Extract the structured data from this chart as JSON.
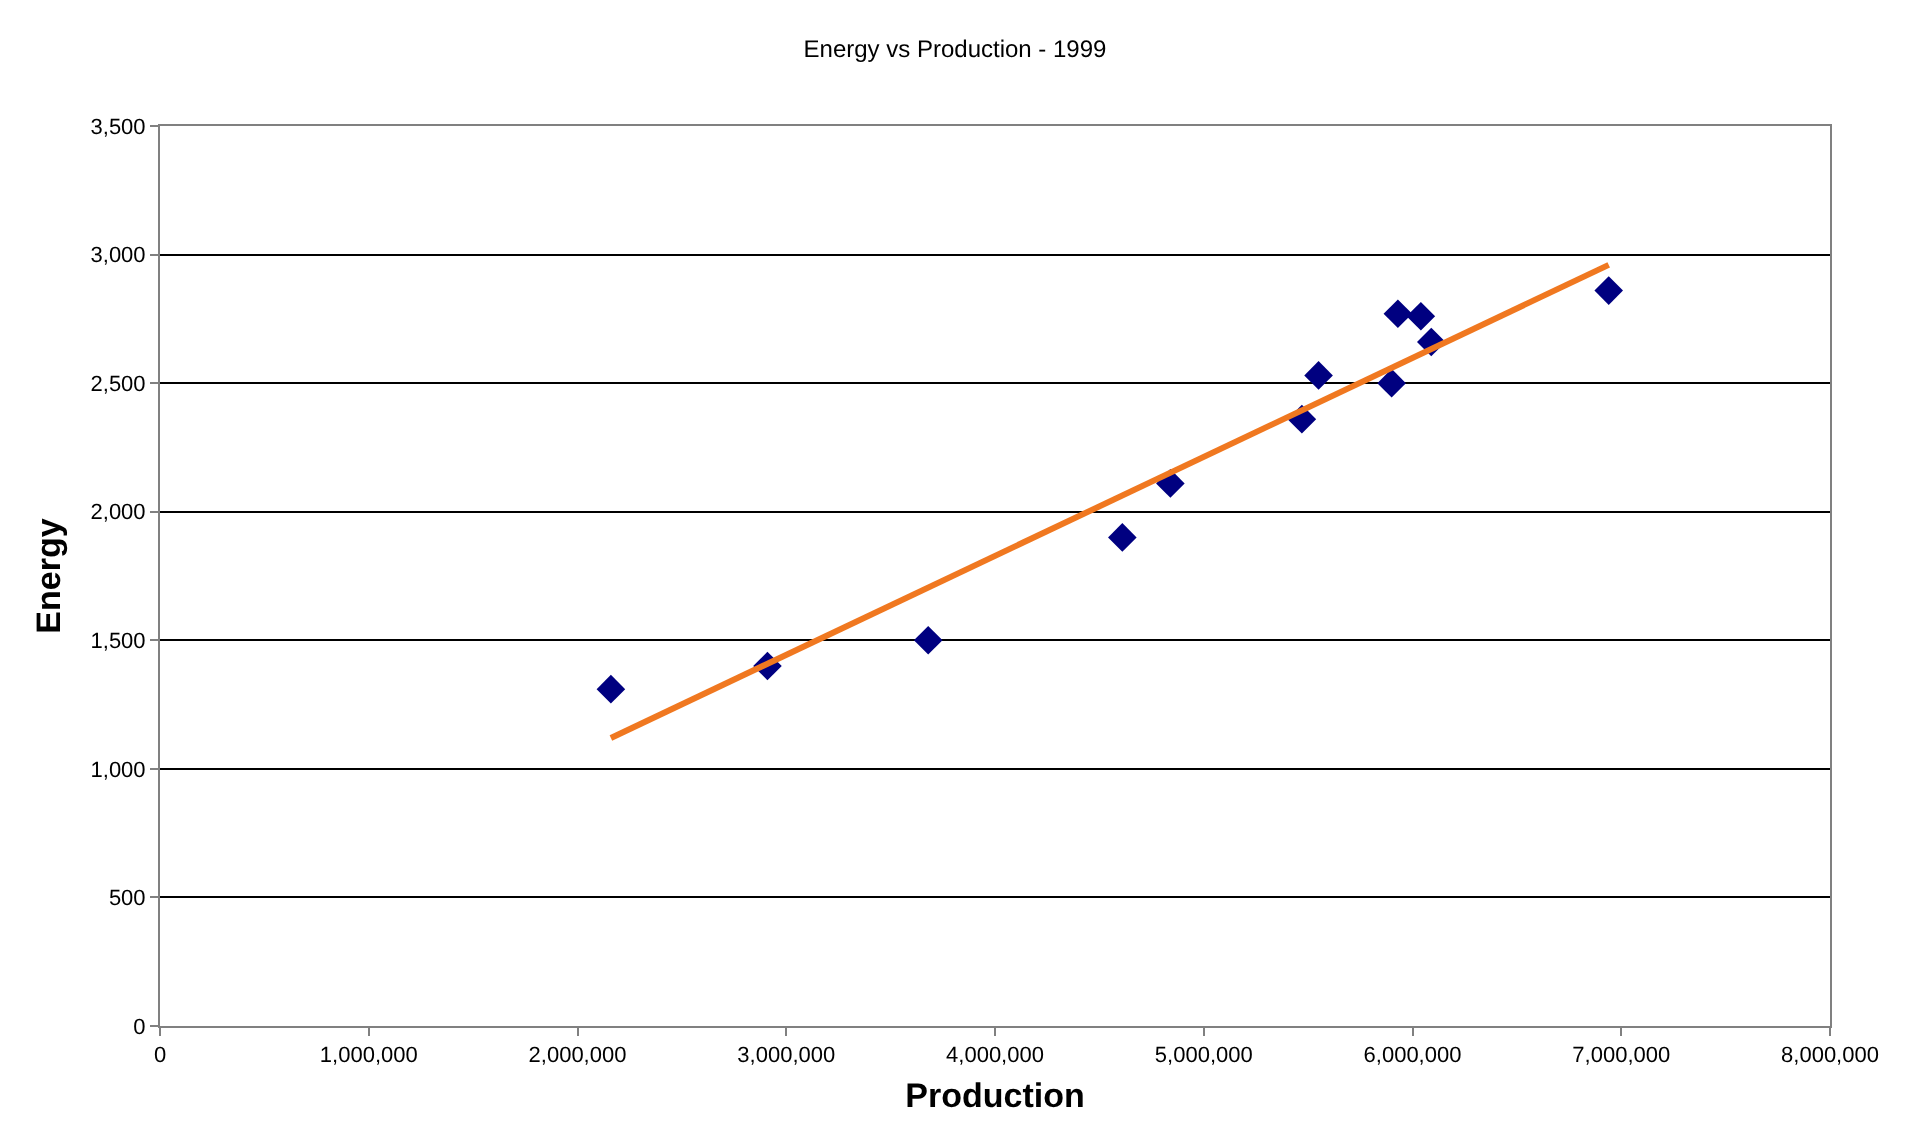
{
  "chart_data": {
    "type": "scatter",
    "title": "Energy vs Production - 1999",
    "xlabel": "Production",
    "ylabel": "Energy",
    "xlim": [
      0,
      8000000
    ],
    "xticks": [
      {
        "value": 0,
        "label": "0"
      },
      {
        "value": 1000000,
        "label": "1,000,000"
      },
      {
        "value": 2000000,
        "label": "2,000,000"
      },
      {
        "value": 3000000,
        "label": "3,000,000"
      },
      {
        "value": 4000000,
        "label": "4,000,000"
      },
      {
        "value": 5000000,
        "label": "5,000,000"
      },
      {
        "value": 6000000,
        "label": "6,000,000"
      },
      {
        "value": 7000000,
        "label": "7,000,000"
      },
      {
        "value": 8000000,
        "label": "8,000,000"
      }
    ],
    "ylim": [
      0,
      3500
    ],
    "yticks": [
      {
        "value": 0,
        "label": "0"
      },
      {
        "value": 500,
        "label": "500"
      },
      {
        "value": 1000,
        "label": "1,000"
      },
      {
        "value": 1500,
        "label": "1,500"
      },
      {
        "value": 2000,
        "label": "2,000"
      },
      {
        "value": 2500,
        "label": "2,500"
      },
      {
        "value": 3000,
        "label": "3,000"
      },
      {
        "value": 3500,
        "label": "3,500"
      }
    ],
    "grid": "y",
    "series": [
      {
        "color": "#000080",
        "marker": "diamond",
        "x": [
          2160000,
          2910000,
          3680000,
          4610000,
          4840000,
          5470000,
          5550000,
          5900000,
          5930000,
          6040000,
          6090000,
          6940000
        ],
        "values": [
          1310,
          1400,
          1500,
          1900,
          2110,
          2360,
          2530,
          2500,
          2770,
          2760,
          2660,
          2860
        ]
      },
      {
        "type": "line",
        "color": "#f07820",
        "marker": "none",
        "line_style": "solid",
        "x": [
          2160000,
          6940000
        ],
        "values": [
          1120,
          2960
        ]
      }
    ]
  }
}
